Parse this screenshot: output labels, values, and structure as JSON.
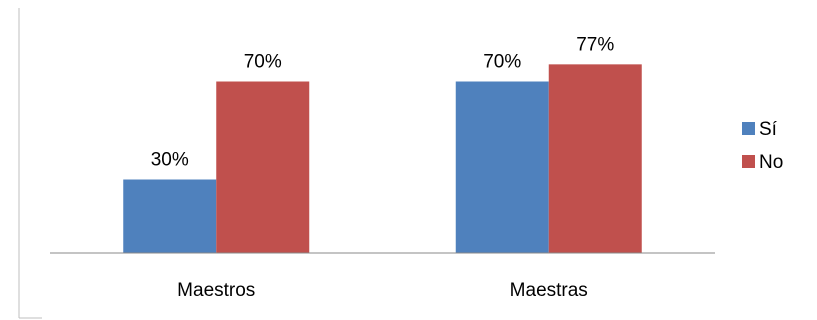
{
  "chart_data": {
    "type": "bar",
    "title": "",
    "xlabel": "",
    "ylabel": "",
    "categories": [
      "Maestros",
      "Maestras"
    ],
    "series": [
      {
        "name": "Sí",
        "values": [
          30,
          70
        ],
        "color": "#4F81BD"
      },
      {
        "name": "No",
        "values": [
          70,
          77
        ],
        "color": "#C0504D"
      }
    ],
    "value_suffix": "%",
    "ylim": [
      0,
      100
    ],
    "grid": false,
    "legend_position": "right"
  }
}
